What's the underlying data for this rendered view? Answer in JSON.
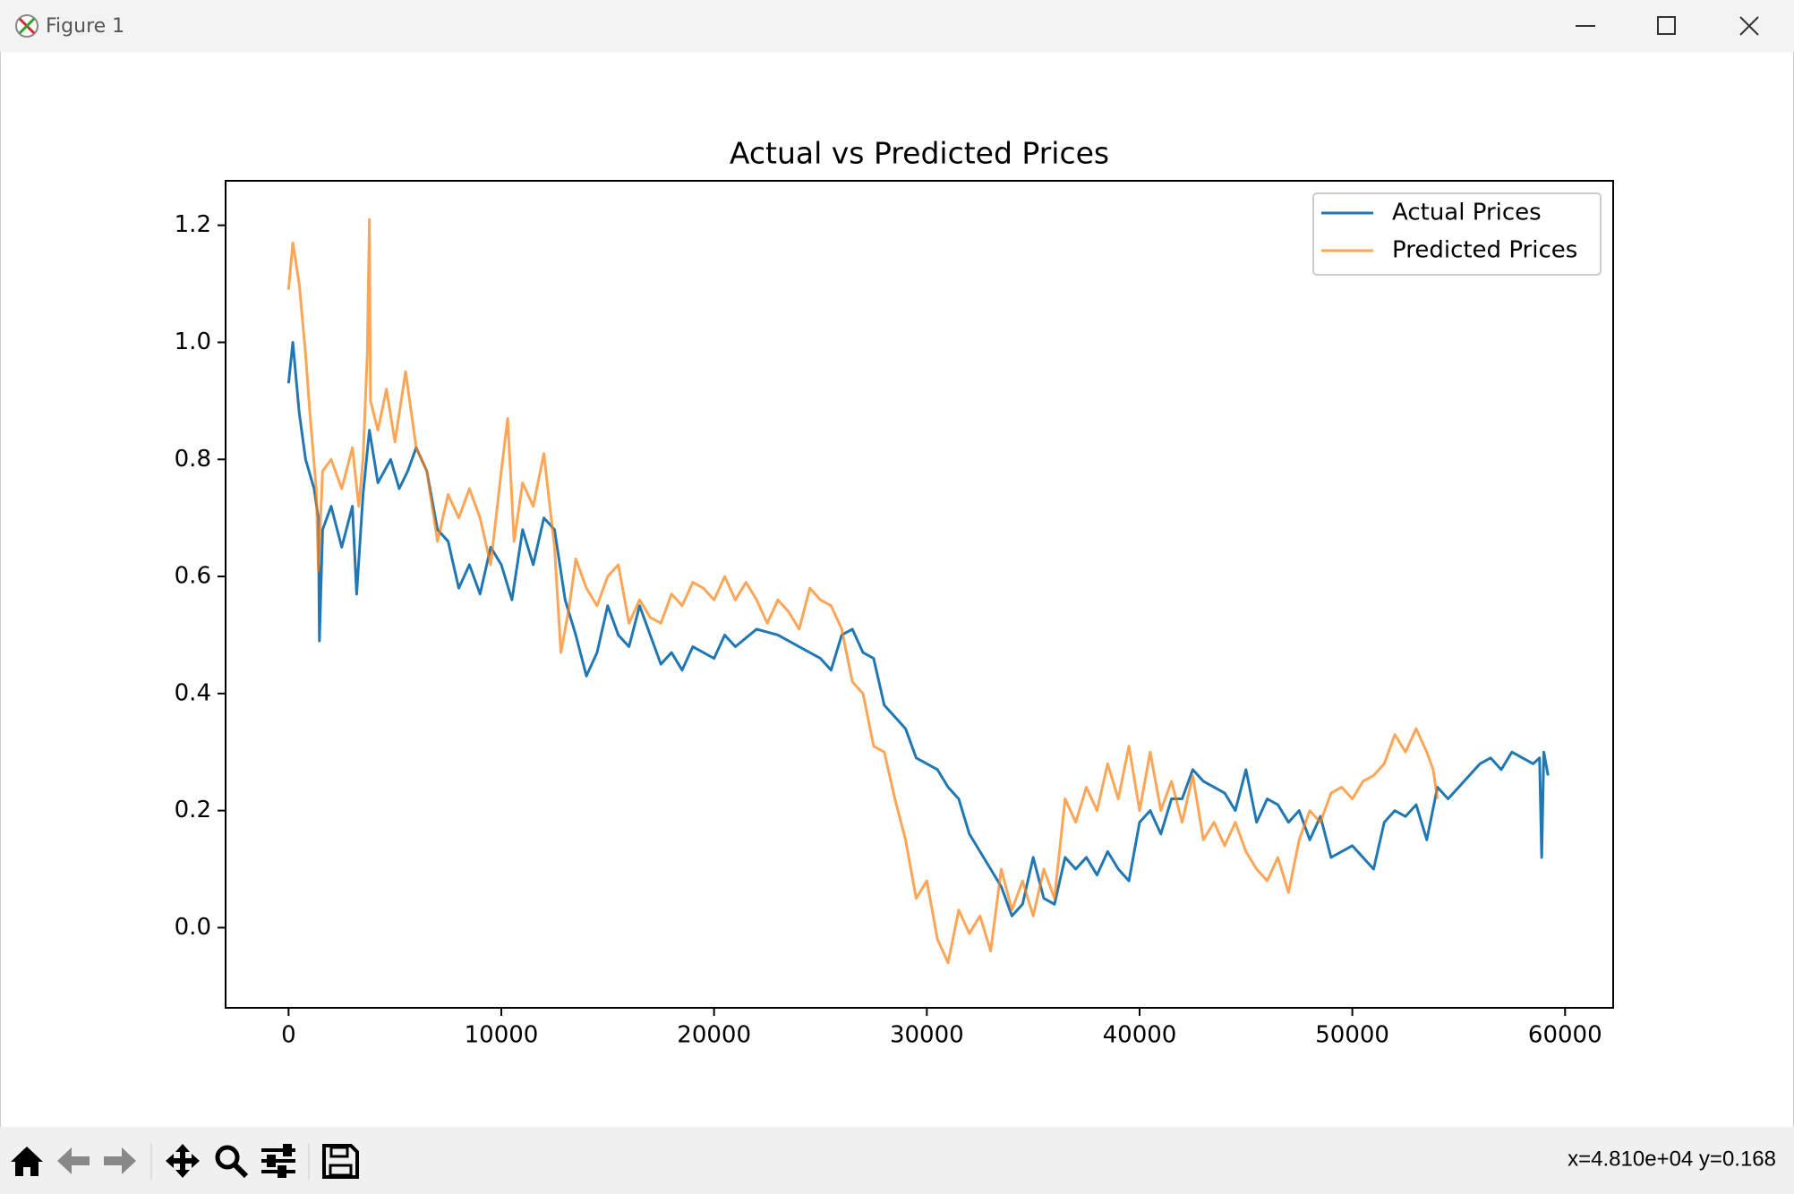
{
  "window": {
    "title": "Figure 1",
    "status": "x=4.810e+04 y=0.168"
  },
  "chart_data": {
    "type": "line",
    "title": "Actual vs Predicted Prices",
    "xlim": [
      -2960,
      62260
    ],
    "xticks": [
      0,
      10000,
      20000,
      30000,
      40000,
      50000,
      60000
    ],
    "ylim": [
      -0.137,
      1.276
    ],
    "yticks": [
      {
        "value": 0,
        "label": "0.0"
      },
      0.2,
      0.4,
      0.6,
      0.8,
      {
        "value": 1,
        "label": "1.0"
      },
      1.2
    ],
    "legend": "upper right",
    "series": [
      {
        "name": "Actual Prices",
        "color": "#1f77b4",
        "alpha": 1,
        "x": [
          0,
          200,
          500,
          800,
          1200,
          1400,
          1450,
          1600,
          2000,
          2500,
          3000,
          3200,
          3500,
          3800,
          4200,
          4800,
          5200,
          5600,
          6000,
          6500,
          7000,
          7500,
          8000,
          8500,
          9000,
          9500,
          10000,
          10500,
          11000,
          11500,
          12000,
          12500,
          13000,
          13500,
          14000,
          14500,
          15000,
          15500,
          16000,
          16500,
          17000,
          17500,
          18000,
          18500,
          19000,
          20000,
          20500,
          21000,
          22000,
          23000,
          24000,
          25000,
          25500,
          26000,
          26500,
          27000,
          27500,
          28000,
          28500,
          29000,
          29500,
          30000,
          30500,
          31000,
          31500,
          32000,
          32500,
          33000,
          33500,
          34000,
          34500,
          35000,
          35500,
          36000,
          36500,
          37000,
          37500,
          38000,
          38500,
          39000,
          39500,
          40000,
          40500,
          41000,
          41500,
          42000,
          42500,
          43000,
          43500,
          44000,
          44500,
          45000,
          45500,
          46000,
          46500,
          47000,
          47500,
          48000,
          48500,
          49000,
          49500,
          50000,
          50500,
          51000,
          51500,
          52000,
          52500,
          53000,
          53500,
          54000,
          54500,
          55000,
          55500,
          56000,
          56500,
          57000,
          57500,
          58000,
          58500,
          58800,
          58900,
          59000,
          59200
        ],
        "values": [
          0.93,
          1.0,
          0.88,
          0.8,
          0.75,
          0.7,
          0.49,
          0.68,
          0.72,
          0.65,
          0.72,
          0.57,
          0.74,
          0.85,
          0.76,
          0.8,
          0.75,
          0.78,
          0.82,
          0.78,
          0.68,
          0.66,
          0.58,
          0.62,
          0.57,
          0.65,
          0.62,
          0.56,
          0.68,
          0.62,
          0.7,
          0.68,
          0.56,
          0.5,
          0.43,
          0.47,
          0.55,
          0.5,
          0.48,
          0.55,
          0.5,
          0.45,
          0.47,
          0.44,
          0.48,
          0.46,
          0.5,
          0.48,
          0.51,
          0.5,
          0.48,
          0.46,
          0.44,
          0.5,
          0.51,
          0.47,
          0.46,
          0.38,
          0.36,
          0.34,
          0.29,
          0.28,
          0.27,
          0.24,
          0.22,
          0.16,
          0.13,
          0.1,
          0.07,
          0.02,
          0.04,
          0.12,
          0.05,
          0.04,
          0.12,
          0.1,
          0.12,
          0.09,
          0.13,
          0.1,
          0.08,
          0.18,
          0.2,
          0.16,
          0.22,
          0.22,
          0.27,
          0.25,
          0.24,
          0.23,
          0.2,
          0.27,
          0.18,
          0.22,
          0.21,
          0.18,
          0.2,
          0.15,
          0.19,
          0.12,
          0.13,
          0.14,
          0.12,
          0.1,
          0.18,
          0.2,
          0.19,
          0.21,
          0.15,
          0.24,
          0.22,
          0.24,
          0.26,
          0.28,
          0.29,
          0.27,
          0.3,
          0.29,
          0.28,
          0.29,
          0.12,
          0.3,
          0.26
        ]
      },
      {
        "name": "Predicted Prices",
        "color": "#ff7f0e",
        "alpha": 0.7,
        "x": [
          0,
          200,
          500,
          800,
          1000,
          1300,
          1400,
          1600,
          2000,
          2500,
          3000,
          3300,
          3500,
          3700,
          3800,
          3850,
          4200,
          4600,
          5000,
          5500,
          6000,
          6500,
          7000,
          7500,
          8000,
          8500,
          9000,
          9500,
          10000,
          10300,
          10600,
          11000,
          11500,
          12000,
          12500,
          12800,
          13200,
          13500,
          14000,
          14500,
          15000,
          15500,
          16000,
          16500,
          17000,
          17500,
          18000,
          18500,
          19000,
          19500,
          20000,
          20500,
          21000,
          21500,
          22000,
          22500,
          23000,
          23500,
          24000,
          24500,
          25000,
          25500,
          26000,
          26500,
          27000,
          27500,
          28000,
          28500,
          29000,
          29500,
          30000,
          30500,
          31000,
          31500,
          32000,
          32500,
          33000,
          33500,
          34000,
          34500,
          35000,
          35500,
          36000,
          36500,
          37000,
          37500,
          38000,
          38500,
          39000,
          39500,
          40000,
          40500,
          41000,
          41500,
          42000,
          42500,
          43000,
          43500,
          44000,
          44500,
          45000,
          45500,
          46000,
          46500,
          47000,
          47500,
          48000,
          48500,
          49000,
          49500,
          50000,
          50500,
          51000,
          51500,
          52000,
          52500,
          53000,
          53500,
          53800,
          54000
        ],
        "values": [
          1.09,
          1.17,
          1.1,
          0.98,
          0.88,
          0.75,
          0.61,
          0.78,
          0.8,
          0.75,
          0.82,
          0.72,
          0.8,
          0.98,
          1.21,
          0.9,
          0.85,
          0.92,
          0.83,
          0.95,
          0.82,
          0.78,
          0.66,
          0.74,
          0.7,
          0.75,
          0.7,
          0.62,
          0.78,
          0.87,
          0.66,
          0.76,
          0.72,
          0.81,
          0.65,
          0.47,
          0.55,
          0.63,
          0.58,
          0.55,
          0.6,
          0.62,
          0.52,
          0.56,
          0.53,
          0.52,
          0.57,
          0.55,
          0.59,
          0.58,
          0.56,
          0.6,
          0.56,
          0.59,
          0.56,
          0.52,
          0.56,
          0.54,
          0.51,
          0.58,
          0.56,
          0.55,
          0.51,
          0.42,
          0.4,
          0.31,
          0.3,
          0.22,
          0.15,
          0.05,
          0.08,
          -0.02,
          -0.06,
          0.03,
          -0.01,
          0.02,
          -0.04,
          0.1,
          0.03,
          0.08,
          0.02,
          0.1,
          0.05,
          0.22,
          0.18,
          0.24,
          0.2,
          0.28,
          0.22,
          0.31,
          0.2,
          0.3,
          0.2,
          0.25,
          0.18,
          0.26,
          0.15,
          0.18,
          0.14,
          0.18,
          0.13,
          0.1,
          0.08,
          0.12,
          0.06,
          0.15,
          0.2,
          0.18,
          0.23,
          0.24,
          0.22,
          0.25,
          0.26,
          0.28,
          0.33,
          0.3,
          0.34,
          0.3,
          0.27,
          0.22
        ]
      }
    ]
  }
}
